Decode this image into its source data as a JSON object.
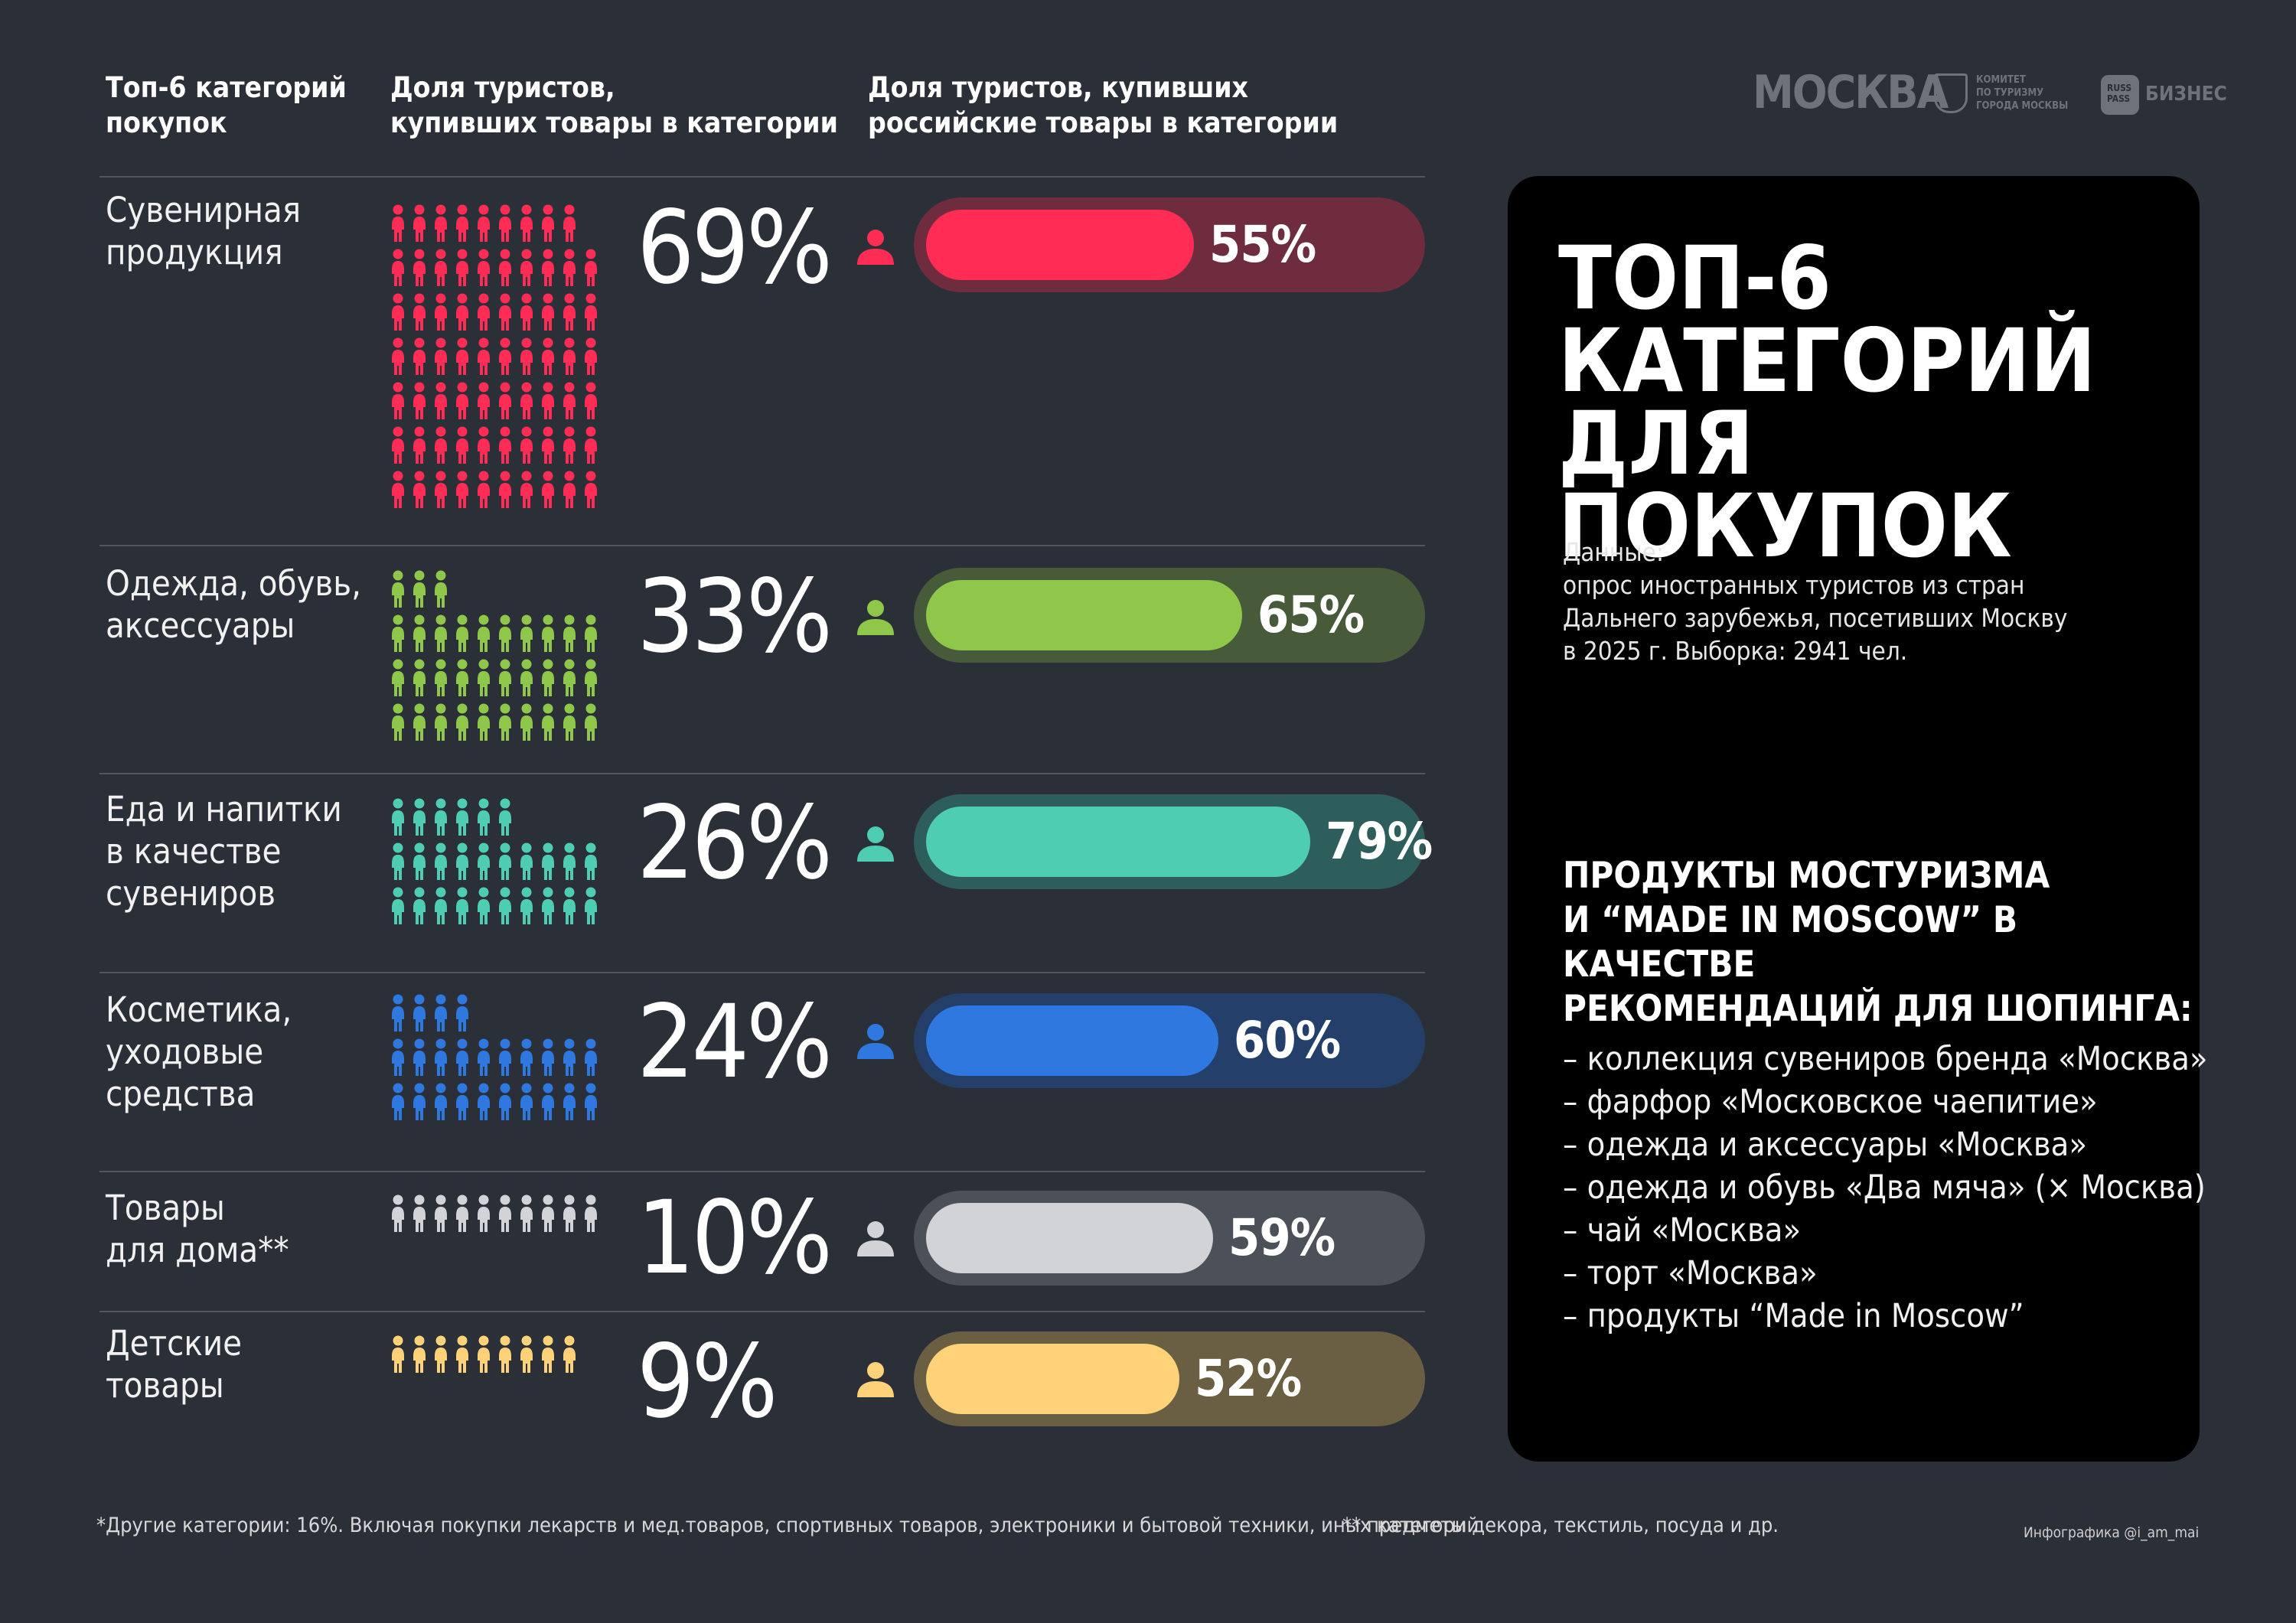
{
  "header": {
    "col1": "Топ-6 категорий\nпокупок",
    "col2": "Доля туристов,\nкупивших товары в категории",
    "col3": "Доля туристов, купивших\nроссийские товары в категории"
  },
  "logos": {
    "moskva": "МОСКВА",
    "komitet": "КОМИТЕТ\nПО ТУРИЗМУ\nГОРОДА МОСКВЫ",
    "russpass": "RUSS\nPASS",
    "biznes": "БИЗНЕС"
  },
  "chart_data": {
    "type": "bar",
    "categories": [
      "Сувенирная\nпродукция",
      "Одежда, обувь,\nаксессуары",
      "Еда и напитки\nв качестве\nсувениров",
      "Косметика,\nуходовые\nсредства",
      "Товары\nдля дома**",
      "Детские\nтовары"
    ],
    "series": [
      {
        "values": [
          69,
          33,
          26,
          24,
          10,
          9
        ],
        "labels": [
          "69%",
          "33%",
          "26%",
          "24%",
          "10%",
          "9%"
        ]
      },
      {
        "values": [
          55,
          65,
          79,
          60,
          59,
          52
        ],
        "labels": [
          "55%",
          "65%",
          "79%",
          "60%",
          "59%",
          "52%"
        ]
      }
    ],
    "ylim": [
      0,
      100
    ]
  },
  "colors": {
    "background": "#2b2f38",
    "rows": [
      {
        "main": "#ff2d55",
        "track": "#6e2c3e"
      },
      {
        "main": "#8fc74a",
        "track": "#475a3a"
      },
      {
        "main": "#4fcdb3",
        "track": "#2e5e5b"
      },
      {
        "main": "#2e78e0",
        "track": "#233f6a"
      },
      {
        "main": "#d2d3d6",
        "track": "#4c5059"
      },
      {
        "main": "#ffd27a",
        "track": "#6a5f42"
      }
    ]
  },
  "panel": {
    "title": "ТОП-6\nКАТЕГОРИЙ\nДЛЯ ПОКУПОК",
    "data_text": "Данные:\nопрос иностранных туристов из стран\nДальнего зарубежья, посетивших Москву\nв 2025 г. Выборка: 2941 чел.",
    "subtitle": "ПРОДУКТЫ МОСТУРИЗМА\nИ “MADE IN MOSCOW” В КАЧЕСТВЕ\nРЕКОМЕНДАЦИЙ ДЛЯ ШОПИНГА:",
    "items": [
      "– коллекция сувениров бренда «Москва»",
      "– фарфор «Московское чаепитие»",
      "– одежда и аксессуары «Москва»",
      "– одежда и обувь «Два мяча» (× Москва)",
      "– чай «Москва»",
      "– торт «Москва»",
      "– продукты “Made in Moscow”"
    ]
  },
  "footer": {
    "note1": "*Другие категории: 16%. Включая покупки лекарств и мед.товаров, спортивных товаров, электроники и бытовой техники, иных категорий.",
    "note2": "** предметы декора, текстиль, посуда и др.",
    "credit": "Инфографика @i_am_mai"
  }
}
